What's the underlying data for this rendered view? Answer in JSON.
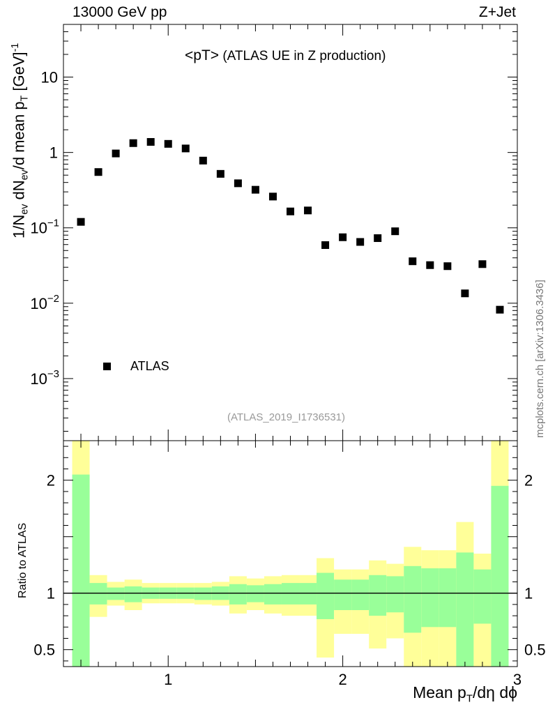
{
  "header": {
    "left": "13000 GeV pp",
    "right": "Z+Jet",
    "subtitle_main": "<pT>",
    "subtitle_rest": " (ATLAS UE in Z production)",
    "reference": "(ATLAS_2019_I1736531)",
    "sidebar": "mcplots.cern.ch [arXiv:1306.3436]"
  },
  "axes": {
    "ylabel_parts": [
      "1/N",
      "ev",
      " dN",
      "ev",
      "/d mean p",
      "T",
      " [GeV]",
      "-1"
    ],
    "ratio_ylabel": "Ratio to ATLAS",
    "xlabel_parts": [
      "Mean p",
      "T",
      "/dη dϕ"
    ],
    "main_yticks": [
      {
        "value": 10,
        "label": "10"
      },
      {
        "value": 1,
        "label": "1"
      },
      {
        "value": 0.1,
        "base": "10",
        "exp": "−1"
      },
      {
        "value": 0.01,
        "base": "10",
        "exp": "−2"
      },
      {
        "value": 0.001,
        "base": "10",
        "exp": "−3"
      }
    ],
    "ratio_yticks": [
      {
        "value": 2,
        "label": "2"
      },
      {
        "value": 1,
        "label": "1"
      },
      {
        "value": 0.5,
        "label": "0.5"
      }
    ],
    "xticks": [
      {
        "value": 1,
        "label": "1"
      },
      {
        "value": 2,
        "label": "2"
      },
      {
        "value": 3,
        "label": "3"
      }
    ]
  },
  "chart_data": {
    "type": "scatter",
    "title": "<pT> (ATLAS UE in Z production)",
    "xlabel": "Mean pT/dη dϕ",
    "ylabel": "1/Nev dNev/d mean pT [GeV]^-1",
    "xlim": [
      0.4,
      3.0
    ],
    "ylim_main": [
      0.00015,
      50
    ],
    "ylog": true,
    "ylim_ratio": [
      0.35,
      2.35
    ],
    "legend": {
      "position": "bottom-left",
      "entries": [
        "ATLAS"
      ]
    },
    "series": [
      {
        "name": "ATLAS",
        "x": [
          0.5,
          0.6,
          0.7,
          0.8,
          0.9,
          1.0,
          1.1,
          1.2,
          1.3,
          1.4,
          1.5,
          1.6,
          1.7,
          1.8,
          1.9,
          2.0,
          2.1,
          2.2,
          2.3,
          2.4,
          2.5,
          2.6,
          2.7,
          2.8,
          2.9
        ],
        "y": [
          0.12,
          0.55,
          0.97,
          1.33,
          1.38,
          1.3,
          1.13,
          0.78,
          0.52,
          0.39,
          0.32,
          0.26,
          0.165,
          0.17,
          0.059,
          0.075,
          0.065,
          0.073,
          0.09,
          0.036,
          0.032,
          0.031,
          0.0135,
          0.033,
          0.0082
        ]
      }
    ],
    "ratio_bands": {
      "bin_edges": [
        0.45,
        0.55,
        0.65,
        0.75,
        0.85,
        0.95,
        1.05,
        1.15,
        1.25,
        1.35,
        1.45,
        1.55,
        1.65,
        1.75,
        1.85,
        1.95,
        2.05,
        2.15,
        2.25,
        2.35,
        2.45,
        2.55,
        2.65,
        2.75,
        2.85,
        2.95
      ],
      "outer_hi": [
        2.4,
        1.16,
        1.1,
        1.12,
        1.09,
        1.09,
        1.09,
        1.09,
        1.1,
        1.15,
        1.13,
        1.15,
        1.16,
        1.16,
        1.31,
        1.21,
        1.21,
        1.29,
        1.26,
        1.41,
        1.38,
        1.38,
        1.63,
        1.35,
        2.4
      ],
      "outer_lo": [
        0.35,
        0.79,
        0.89,
        0.85,
        0.91,
        0.91,
        0.91,
        0.9,
        0.89,
        0.82,
        0.85,
        0.82,
        0.8,
        0.8,
        0.43,
        0.64,
        0.64,
        0.51,
        0.6,
        0.35,
        0.35,
        0.35,
        0.35,
        0.35,
        0.35
      ],
      "inner_hi": [
        2.05,
        1.09,
        1.05,
        1.06,
        1.05,
        1.05,
        1.05,
        1.05,
        1.06,
        1.08,
        1.07,
        1.08,
        1.09,
        1.09,
        1.18,
        1.12,
        1.12,
        1.16,
        1.15,
        1.24,
        1.22,
        1.22,
        1.36,
        1.21,
        1.95
      ],
      "inner_lo": [
        0.35,
        0.9,
        0.94,
        0.92,
        0.95,
        0.95,
        0.95,
        0.94,
        0.94,
        0.9,
        0.92,
        0.9,
        0.9,
        0.9,
        0.77,
        0.85,
        0.85,
        0.8,
        0.83,
        0.65,
        0.7,
        0.7,
        0.35,
        0.73,
        0.35
      ]
    },
    "colors": {
      "marker": "#000000",
      "band_inner": "#99ff99",
      "band_outer": "#ffff99",
      "ratio_line": "#000000"
    }
  }
}
